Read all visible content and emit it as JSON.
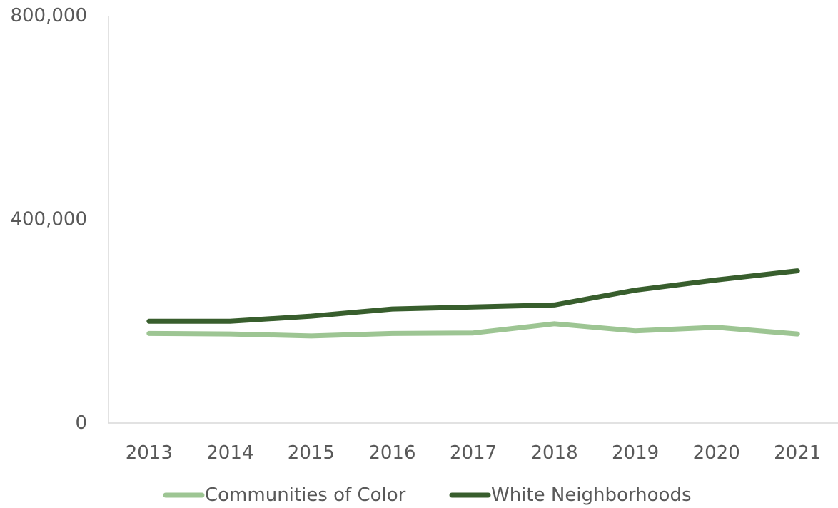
{
  "chart_data": {
    "type": "line",
    "categories": [
      "2013",
      "2014",
      "2015",
      "2016",
      "2017",
      "2018",
      "2019",
      "2020",
      "2021"
    ],
    "y_ticks": [
      0,
      400000,
      800000
    ],
    "y_tick_labels": [
      "0",
      "400,000",
      "800,000"
    ],
    "ylim": [
      0,
      800000
    ],
    "grid": false,
    "legend_position": "bottom",
    "series": [
      {
        "name": "Communities of Color",
        "color": "#9dc593",
        "values": [
          176000,
          175000,
          171000,
          176000,
          177000,
          195000,
          181000,
          188000,
          175000
        ]
      },
      {
        "name": "White Neighborhoods",
        "color": "#385e2d",
        "values": [
          200000,
          200000,
          210000,
          224000,
          228000,
          232000,
          261000,
          281000,
          299000
        ]
      }
    ]
  }
}
